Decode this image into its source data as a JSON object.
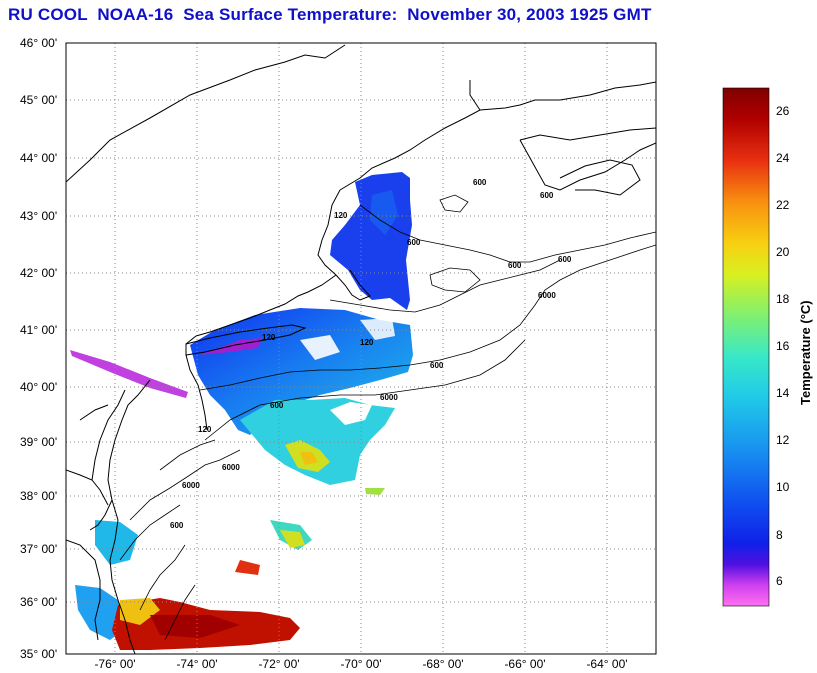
{
  "title": "RU COOL  NOAA-16  Sea Surface Temperature:  November 30, 2003 1925 GMT",
  "map": {
    "lat_ticks": [
      "46° 00'",
      "45° 00'",
      "44° 00'",
      "43° 00'",
      "42° 00'",
      "41° 00'",
      "40° 00'",
      "39° 00'",
      "38° 00'",
      "37° 00'",
      "36° 00'",
      "35° 00'"
    ],
    "lon_ticks": [
      "-76° 00'",
      "-74° 00'",
      "-72° 00'",
      "-70° 00'",
      "-68° 00'",
      "-66° 00'",
      "-64° 00'"
    ],
    "contour_labels": [
      "600",
      "600",
      "600",
      "120",
      "6000",
      "600",
      "120",
      "600",
      "6000",
      "600",
      "6000",
      "6000",
      "120",
      "600",
      "120",
      "600"
    ]
  },
  "colorbar": {
    "title": "Temperature (°C)",
    "ticks": [
      "26",
      "24",
      "22",
      "20",
      "18",
      "16",
      "14",
      "12",
      "10",
      "8",
      "6"
    ],
    "range": [
      5,
      27
    ],
    "stops": [
      "#ff70f0",
      "#d040f0",
      "#5010e0",
      "#1020e8",
      "#1050f0",
      "#1890f0",
      "#20c8e8",
      "#38e8c8",
      "#80f070",
      "#d8f020",
      "#f8d010",
      "#f89010",
      "#e83010",
      "#b00000",
      "#800000"
    ]
  }
}
